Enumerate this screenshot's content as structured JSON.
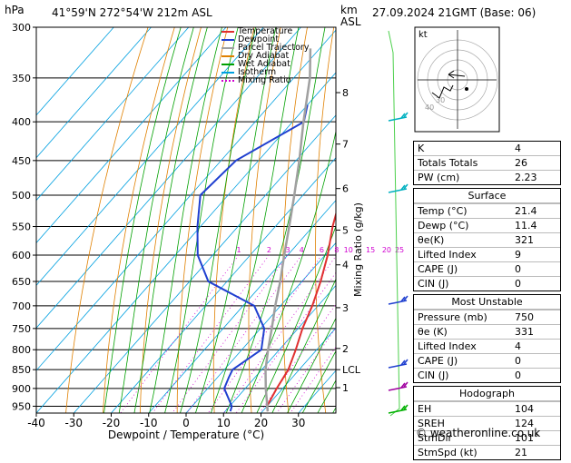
{
  "header": {
    "hpa": "hPa",
    "location": "41°59'N  272°54'W  212m  ASL",
    "km": "km",
    "asl": "ASL",
    "date": "27.09.2024  21GMT  (Base: 06)"
  },
  "legend": [
    {
      "label": "Temperature",
      "color": "#e03030"
    },
    {
      "label": "Dewpoint",
      "color": "#2040d0"
    },
    {
      "label": "Parcel Trajectory",
      "color": "#a0a0a0"
    },
    {
      "label": "Dry Adiabat",
      "color": "#e08000"
    },
    {
      "label": "Wet Adiabat",
      "color": "#00a000"
    },
    {
      "label": "Isotherm",
      "color": "#00a0e0"
    },
    {
      "label": "Mixing Ratio",
      "color": "#d000d0"
    }
  ],
  "chart_data": {
    "type": "line",
    "xlabel": "Dewpoint / Temperature (°C)",
    "ylabel": "Mixing Ratio (g/kg)",
    "xlim": [
      -40,
      40
    ],
    "ylim": [
      300,
      970
    ],
    "pressure_ticks": [
      300,
      350,
      400,
      450,
      500,
      550,
      600,
      650,
      700,
      750,
      800,
      850,
      900,
      950
    ],
    "temp_ticks": [
      -40,
      -30,
      -20,
      -10,
      0,
      10,
      20,
      30
    ],
    "km_ticks": [
      {
        "label": "8",
        "p": 366
      },
      {
        "label": "7",
        "p": 428
      },
      {
        "label": "6",
        "p": 490
      },
      {
        "label": "5",
        "p": 556
      },
      {
        "label": "4",
        "p": 618
      },
      {
        "label": "3",
        "p": 704
      },
      {
        "label": "2",
        "p": 797
      },
      {
        "label": "LCL",
        "p": 850
      },
      {
        "label": "1",
        "p": 898
      }
    ],
    "mixing_ratio_labels": [
      "1",
      "2",
      "3",
      "4",
      "6",
      "8",
      "10",
      "15",
      "20",
      "25"
    ],
    "series": [
      {
        "name": "Temperature",
        "color": "#e03030",
        "points": [
          [
            965,
            21.4
          ],
          [
            950,
            20.0
          ],
          [
            900,
            18.4
          ],
          [
            850,
            17.1
          ],
          [
            800,
            14.4
          ],
          [
            750,
            11.2
          ],
          [
            700,
            8.5
          ],
          [
            650,
            5.0
          ],
          [
            600,
            0.7
          ],
          [
            550,
            -4.7
          ],
          [
            500,
            -9.8
          ],
          [
            450,
            -15.8
          ],
          [
            400,
            -20.6
          ],
          [
            380,
            -23.0
          ]
        ]
      },
      {
        "name": "Dewpoint",
        "color": "#2040d0",
        "points": [
          [
            965,
            11.4
          ],
          [
            950,
            10.6
          ],
          [
            900,
            4.4
          ],
          [
            870,
            3.0
          ],
          [
            850,
            2.2
          ],
          [
            800,
            5.2
          ],
          [
            750,
            1.0
          ],
          [
            700,
            -7.0
          ],
          [
            650,
            -25.0
          ],
          [
            600,
            -34.0
          ],
          [
            550,
            -40.8
          ],
          [
            500,
            -47.4
          ],
          [
            450,
            -46.0
          ],
          [
            400,
            -37.0
          ],
          [
            380,
            -40.0
          ]
        ]
      },
      {
        "name": "Parcel Trajectory",
        "color": "#a0a0a0",
        "points": [
          [
            965,
            21.4
          ],
          [
            900,
            15.5
          ],
          [
            850,
            11.0
          ],
          [
            800,
            7.0
          ],
          [
            750,
            3.0
          ],
          [
            700,
            -1.4
          ],
          [
            650,
            -5.8
          ],
          [
            600,
            -10.9
          ],
          [
            550,
            -16.3
          ],
          [
            500,
            -22.3
          ],
          [
            450,
            -29.1
          ],
          [
            400,
            -37.1
          ],
          [
            350,
            -45.7
          ],
          [
            320,
            -52.5
          ]
        ]
      }
    ],
    "hodograph": {
      "unit": "kt",
      "rings_label": [
        "40",
        "30"
      ]
    }
  },
  "indices": [
    {
      "label": "K",
      "value": "4"
    },
    {
      "label": "Totals Totals",
      "value": "26"
    },
    {
      "label": "PW (cm)",
      "value": "2.23"
    }
  ],
  "surface": {
    "title": "Surface",
    "rows": [
      {
        "label": "Temp (°C)",
        "value": "21.4"
      },
      {
        "label": "Dewp (°C)",
        "value": "11.4"
      },
      {
        "label": "θe(K)",
        "value": "321"
      },
      {
        "label": "Lifted Index",
        "value": "9"
      },
      {
        "label": "CAPE (J)",
        "value": "0"
      },
      {
        "label": "CIN (J)",
        "value": "0"
      }
    ]
  },
  "most_unstable": {
    "title": "Most Unstable",
    "rows": [
      {
        "label": "Pressure (mb)",
        "value": "750"
      },
      {
        "label": "θe (K)",
        "value": "331"
      },
      {
        "label": "Lifted Index",
        "value": "4"
      },
      {
        "label": "CAPE (J)",
        "value": "0"
      },
      {
        "label": "CIN (J)",
        "value": "0"
      }
    ]
  },
  "hodograph_table": {
    "title": "Hodograph",
    "rows": [
      {
        "label": "EH",
        "value": "104"
      },
      {
        "label": "SREH",
        "value": "124"
      },
      {
        "label": "StmDir",
        "value": "101°"
      },
      {
        "label": "StmSpd (kt)",
        "value": "21"
      }
    ]
  },
  "footer": "© weatheronline.co.uk"
}
